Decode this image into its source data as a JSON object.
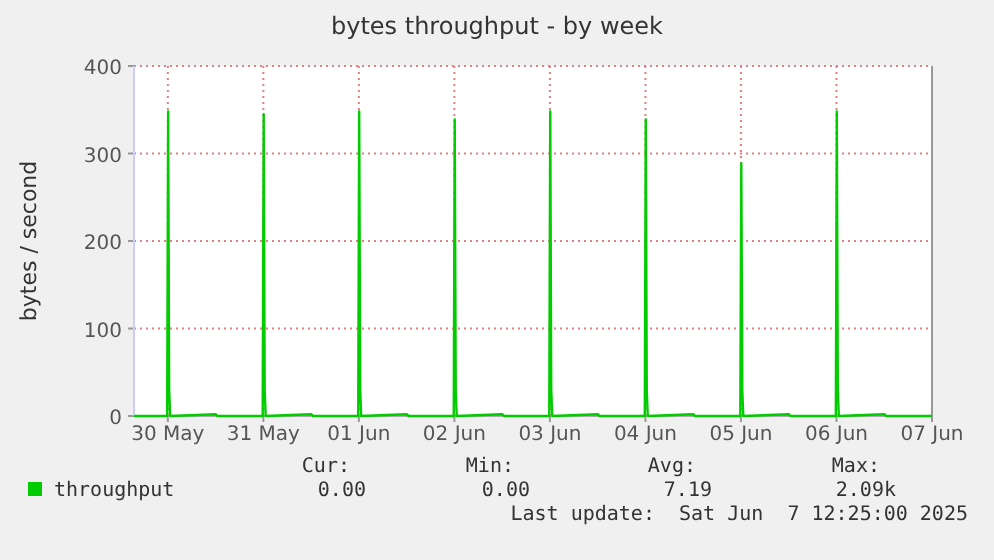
{
  "chart_data": {
    "type": "line",
    "title": "bytes throughput - by week",
    "ylabel": "bytes / second",
    "x": [
      "2025-05-29T15:30",
      "2025-05-29T23:50",
      "2025-05-30T00:05",
      "2025-05-30T00:20",
      "2025-05-30T00:35",
      "2025-05-30T12:00",
      "2025-05-30T12:30",
      "2025-05-30T23:50",
      "2025-05-31T00:05",
      "2025-05-31T00:20",
      "2025-05-31T00:35",
      "2025-05-31T12:00",
      "2025-05-31T12:30",
      "2025-05-31T23:50",
      "2025-06-01T00:05",
      "2025-06-01T00:20",
      "2025-06-01T00:35",
      "2025-06-01T12:00",
      "2025-06-01T12:30",
      "2025-06-01T23:50",
      "2025-06-02T00:05",
      "2025-06-02T00:20",
      "2025-06-02T00:35",
      "2025-06-02T12:00",
      "2025-06-02T12:30",
      "2025-06-02T23:50",
      "2025-06-03T00:05",
      "2025-06-03T00:20",
      "2025-06-03T00:35",
      "2025-06-03T12:00",
      "2025-06-03T12:30",
      "2025-06-03T23:50",
      "2025-06-04T00:05",
      "2025-06-04T00:20",
      "2025-06-04T00:35",
      "2025-06-04T12:00",
      "2025-06-04T12:30",
      "2025-06-04T23:50",
      "2025-06-05T00:05",
      "2025-06-05T00:20",
      "2025-06-05T00:35",
      "2025-06-05T12:00",
      "2025-06-05T12:30",
      "2025-06-05T23:50",
      "2025-06-06T00:05",
      "2025-06-06T00:20",
      "2025-06-06T00:35",
      "2025-06-06T12:00",
      "2025-06-06T12:30",
      "2025-06-07T00:00"
    ],
    "series": [
      {
        "name": "throughput",
        "color": "#00cc00",
        "values": [
          0,
          0,
          348,
          30,
          0,
          2,
          0,
          0,
          345,
          30,
          0,
          2,
          0,
          0,
          348,
          30,
          0,
          2,
          0,
          0,
          339,
          30,
          0,
          2,
          0,
          0,
          348,
          30,
          0,
          2,
          0,
          0,
          339,
          30,
          0,
          2,
          0,
          0,
          289,
          30,
          0,
          2,
          0,
          0,
          348,
          30,
          0,
          2,
          0,
          0
        ]
      }
    ],
    "xlim": [
      "2025-05-29T15:30",
      "2025-06-07T00:00"
    ],
    "xticks": [
      {
        "value": "2025-05-30",
        "label": "30 May"
      },
      {
        "value": "2025-05-31",
        "label": "31 May"
      },
      {
        "value": "2025-06-01",
        "label": "01 Jun"
      },
      {
        "value": "2025-06-02",
        "label": "02 Jun"
      },
      {
        "value": "2025-06-03",
        "label": "03 Jun"
      },
      {
        "value": "2025-06-04",
        "label": "04 Jun"
      },
      {
        "value": "2025-06-05",
        "label": "05 Jun"
      },
      {
        "value": "2025-06-06",
        "label": "06 Jun"
      },
      {
        "value": "2025-06-07",
        "label": "07 Jun"
      }
    ],
    "ylim": [
      0,
      400
    ],
    "yticks": [
      0,
      100,
      200,
      300,
      400
    ],
    "grid": true,
    "legend": "bottom left",
    "marker": "none",
    "line_style": "solid",
    "annotations": [
      "Cur:",
      "Min:",
      "Avg:",
      "Max:",
      "0.00",
      "0.00",
      "7.19",
      "2.09k",
      "Last update:  Sat Jun  7 12:25:00 2025"
    ]
  }
}
